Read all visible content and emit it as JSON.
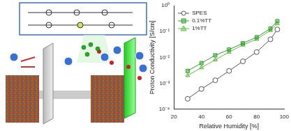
{
  "chart_data": {
    "type": "line",
    "x_label": "Relative Humidity [%]",
    "y_label": "Proton Conductivity [S/cm]",
    "log": "y",
    "grid": false,
    "legend": "upper left",
    "xlim": [
      20,
      100
    ],
    "xticks": [
      20,
      40,
      60,
      80,
      100
    ],
    "ylim": [
      0.0001,
      1
    ],
    "yticks": [
      {
        "value": 0.0001,
        "label": "10⁻⁴"
      },
      {
        "value": 0.001,
        "label": "10⁻³"
      },
      {
        "value": 0.01,
        "label": "10⁻²"
      },
      {
        "value": 0.1,
        "label": "10⁻¹"
      },
      {
        "value": 1,
        "label": "10⁰"
      }
    ],
    "x": [
      30,
      40,
      50,
      60,
      70,
      80,
      90,
      95
    ],
    "series": [
      {
        "name": "SPES",
        "color": "#555555",
        "marker": "circle",
        "line_style": "solid",
        "values": [
          0.00025,
          0.0006,
          0.0013,
          0.003,
          0.007,
          0.016,
          0.05,
          0.12
        ]
      },
      {
        "name": "0.1%TT",
        "color": "#2e9e2e",
        "marker": "square",
        "line_style": "solid",
        "values": [
          0.003,
          0.006,
          0.012,
          0.02,
          0.035,
          0.06,
          0.13,
          0.25
        ]
      },
      {
        "name": "1%TT",
        "color": "#66bb44",
        "marker": "triangle",
        "line_style": "solid",
        "values": [
          0.002,
          0.004,
          0.008,
          0.016,
          0.03,
          0.05,
          0.11,
          0.2
        ]
      }
    ]
  }
}
